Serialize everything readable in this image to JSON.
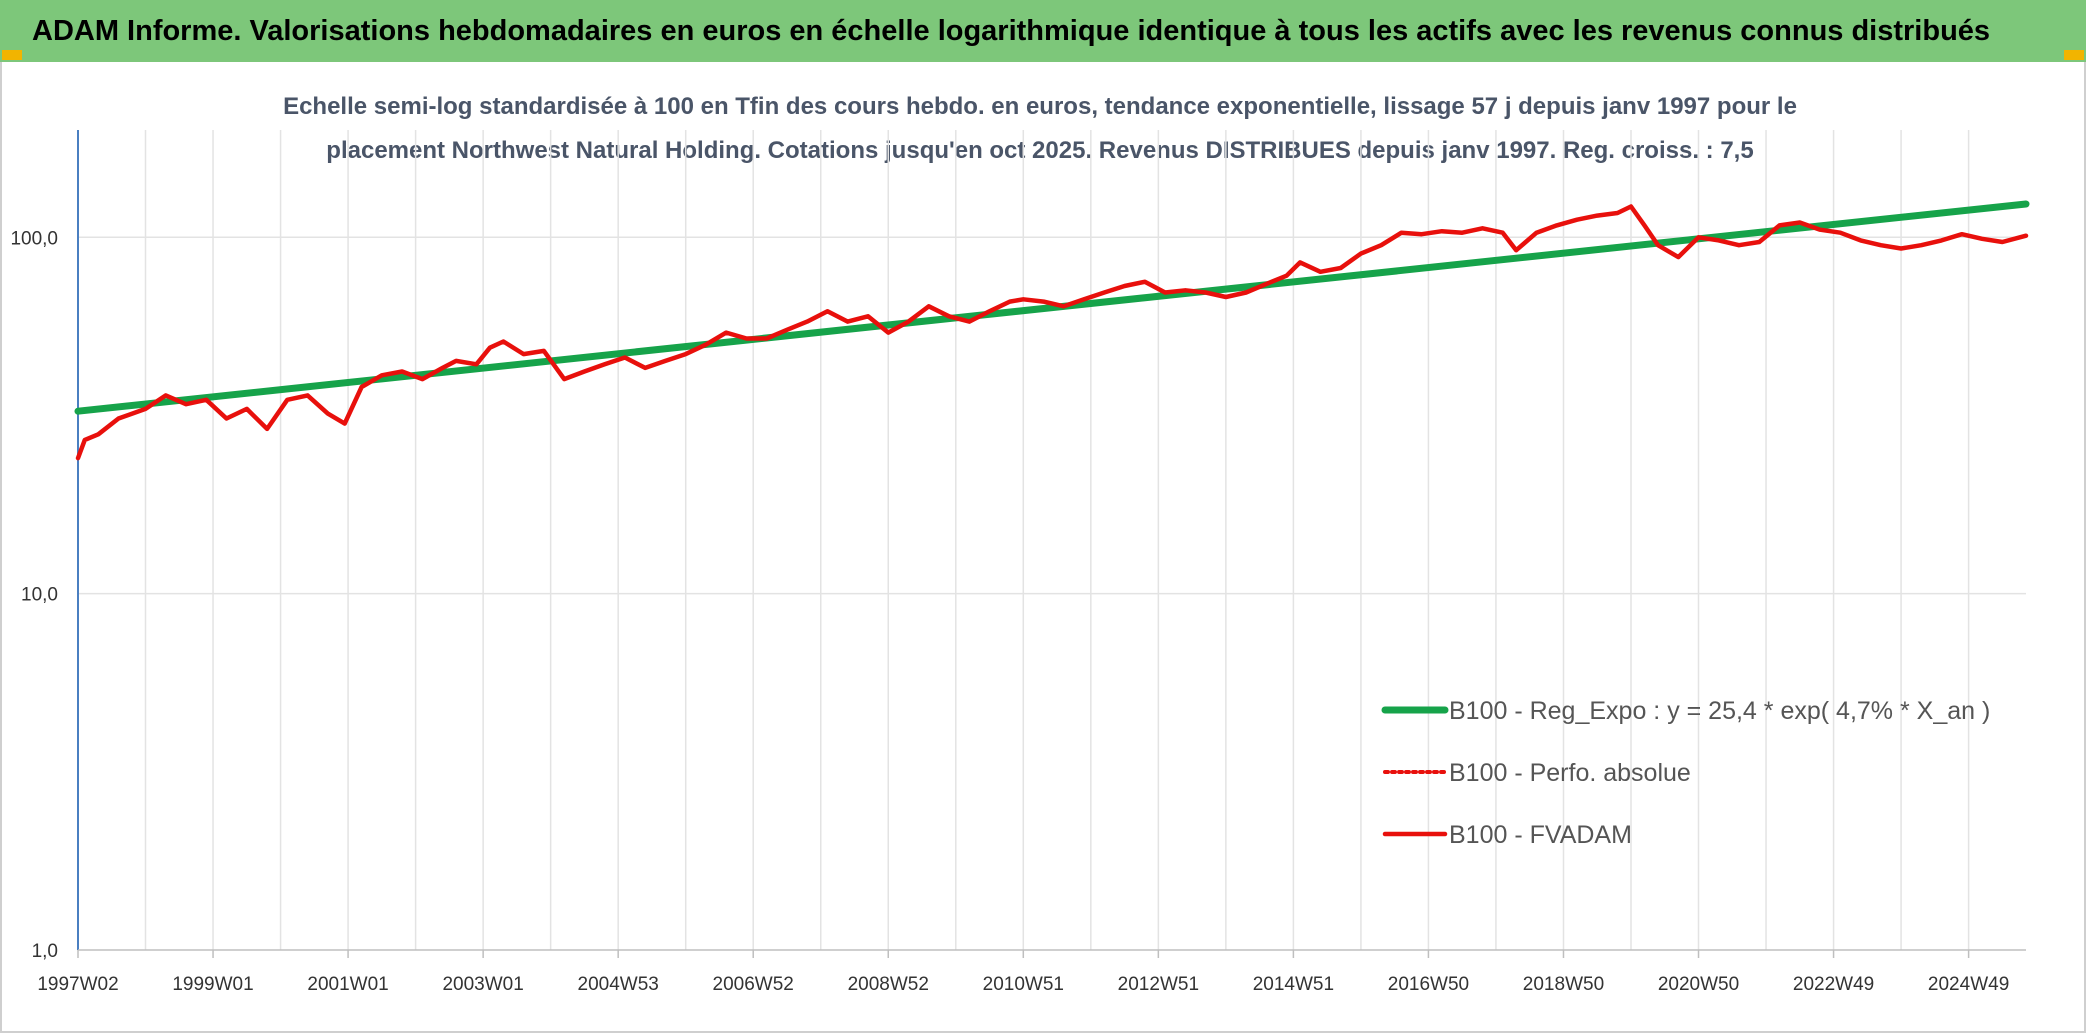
{
  "banner": {
    "title": "ADAM Informe. Valorisations hebdomadaires en euros en échelle logarithmique identique à tous les actifs avec les revenus connus distribués"
  },
  "colors": {
    "banner_bg": "#7dc77a",
    "regression": "#16a34a",
    "fvadam": "#e8100c",
    "perfo": "#e8100c",
    "grid": "#e3e3e3",
    "axis": "#4a7fc1",
    "corner": "#f2b400"
  },
  "chart_data": {
    "type": "line",
    "title_lines": [
      "Echelle semi-log standardisée à 100 en Tfin des cours hebdo. en euros, tendance exponentielle, lissage 57 j depuis janv 1997 pour le",
      "placement Northwest Natural Holding. Cotations jusqu'en oct 2025. Revenus DISTRIBUES depuis janv 1997. Reg. croiss. : 7,5"
    ],
    "y_scale": "log",
    "ylim": [
      1,
      200
    ],
    "y_ticks": [
      {
        "value": 1,
        "label": "1,0"
      },
      {
        "value": 10,
        "label": "10,0"
      },
      {
        "value": 100,
        "label": "100,0"
      }
    ],
    "x_range": [
      1997.0,
      2025.85
    ],
    "x_tick_labels": [
      "1997W02",
      "1999W01",
      "2001W01",
      "2003W01",
      "2004W53",
      "2006W52",
      "2008W52",
      "2010W51",
      "2012W51",
      "2014W51",
      "2016W50",
      "2018W50",
      "2020W50",
      "2022W49",
      "2024W49"
    ],
    "x_tick_positions": [
      1997.0,
      1999.0,
      2001.0,
      2003.0,
      2005.0,
      2007.0,
      2009.0,
      2011.0,
      2013.0,
      2015.0,
      2017.0,
      2019.0,
      2021.0,
      2023.0,
      2025.0
    ],
    "grid": true,
    "legend_position": "bottom-right",
    "series": [
      {
        "name": "B100 - Reg_Expo : y = 25,4 * exp( 4,7% *  X_an )",
        "style": "solid-thick",
        "x": [
          1997.0,
          2025.85
        ],
        "y": [
          32.5,
          124
        ]
      },
      {
        "name": "B100 - Perfo. absolue",
        "style": "dotted",
        "x": [],
        "y": []
      },
      {
        "name": "B100 - FVADAM",
        "style": "solid",
        "x": [
          1997.0,
          1997.1,
          1997.3,
          1997.6,
          1998.0,
          1998.3,
          1998.6,
          1998.9,
          1999.2,
          1999.5,
          1999.8,
          2000.1,
          2000.4,
          2000.7,
          2000.95,
          2001.2,
          2001.5,
          2001.8,
          2002.1,
          2002.4,
          2002.6,
          2002.9,
          2003.1,
          2003.3,
          2003.6,
          2003.9,
          2004.2,
          2004.5,
          2004.8,
          2005.1,
          2005.4,
          2005.7,
          2006.0,
          2006.3,
          2006.6,
          2006.9,
          2007.2,
          2007.5,
          2007.8,
          2008.1,
          2008.4,
          2008.7,
          2009.0,
          2009.3,
          2009.6,
          2009.9,
          2010.2,
          2010.5,
          2010.8,
          2011.0,
          2011.3,
          2011.6,
          2011.9,
          2012.2,
          2012.5,
          2012.8,
          2013.1,
          2013.4,
          2013.7,
          2014.0,
          2014.3,
          2014.6,
          2014.9,
          2015.1,
          2015.4,
          2015.7,
          2016.0,
          2016.3,
          2016.6,
          2016.9,
          2017.2,
          2017.5,
          2017.8,
          2018.1,
          2018.3,
          2018.6,
          2018.9,
          2019.2,
          2019.5,
          2019.8,
          2020.0,
          2020.2,
          2020.4,
          2020.7,
          2021.0,
          2021.3,
          2021.6,
          2021.9,
          2022.2,
          2022.5,
          2022.8,
          2023.1,
          2023.4,
          2023.7,
          2024.0,
          2024.3,
          2024.6,
          2024.9,
          2025.2,
          2025.5,
          2025.85
        ],
        "y": [
          24,
          27,
          28,
          31,
          33,
          36,
          34,
          35,
          31,
          33,
          29,
          35,
          36,
          32,
          30,
          38,
          41,
          42,
          40,
          43,
          45,
          44,
          49,
          51,
          47,
          48,
          40,
          42,
          44,
          46,
          43,
          45,
          47,
          50,
          54,
          52,
          52,
          55,
          58,
          62,
          58,
          60,
          54,
          58,
          64,
          60,
          58,
          62,
          66,
          67,
          66,
          64,
          67,
          70,
          73,
          75,
          70,
          71,
          70,
          68,
          70,
          74,
          78,
          85,
          80,
          82,
          90,
          95,
          103,
          102,
          104,
          103,
          106,
          103,
          92,
          103,
          108,
          112,
          115,
          117,
          122,
          108,
          95,
          88,
          100,
          98,
          95,
          97,
          108,
          110,
          105,
          103,
          98,
          95,
          93,
          95,
          98,
          102,
          99,
          97,
          101
        ]
      }
    ]
  }
}
